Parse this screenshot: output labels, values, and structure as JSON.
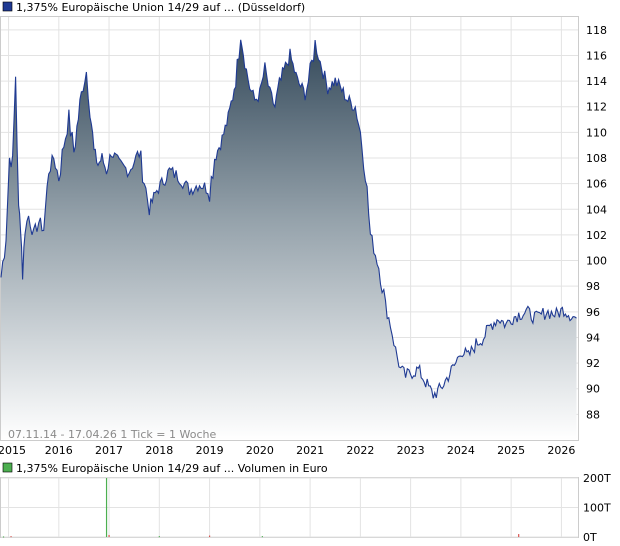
{
  "price_legend": {
    "label": "1,375% Europäische Union 14/29 auf ... (Düsseldorf)",
    "color": "#1f3a93"
  },
  "volume_legend": {
    "label": "1,375% Europäische Union 14/29 auf ... Volumen in Euro",
    "color": "#4caf50"
  },
  "range_note": "07.11.14 - 17.04.26   1 Tick = 1 Woche",
  "chart_data": [
    {
      "type": "area",
      "x_ticks": [
        "2015",
        "2016",
        "2017",
        "2018",
        "2019",
        "2020",
        "2021",
        "2022",
        "2023",
        "2024",
        "2025",
        "2026"
      ],
      "y_ticks": [
        "88",
        "90",
        "92",
        "94",
        "96",
        "98",
        "100",
        "102",
        "104",
        "106",
        "108",
        "110",
        "112",
        "114",
        "116",
        "118"
      ],
      "ylim": [
        86,
        119
      ],
      "xlim": [
        2014.85,
        2026.33
      ],
      "grid": true,
      "series": [
        {
          "name": "1,375% Europäische Union 14/29 auf ... (Düsseldorf)",
          "x": [
            2014.85,
            2014.95,
            2015.02,
            2015.08,
            2015.14,
            2015.2,
            2015.24,
            2015.28,
            2015.33,
            2015.4,
            2015.5,
            2015.6,
            2015.7,
            2015.8,
            2015.9,
            2016.0,
            2016.1,
            2016.2,
            2016.3,
            2016.45,
            2016.55,
            2016.62,
            2016.7,
            2016.78,
            2016.86,
            2016.95,
            2017.05,
            2017.2,
            2017.4,
            2017.6,
            2017.8,
            2017.95,
            2018.05,
            2018.2,
            2018.4,
            2018.6,
            2018.8,
            2019.0,
            2019.1,
            2019.25,
            2019.4,
            2019.55,
            2019.62,
            2019.7,
            2019.8,
            2019.9,
            2020.0,
            2020.1,
            2020.2,
            2020.3,
            2020.45,
            2020.6,
            2020.75,
            2020.9,
            2021.0,
            2021.1,
            2021.2,
            2021.35,
            2021.5,
            2021.6,
            2021.75,
            2021.9,
            2022.0,
            2022.1,
            2022.2,
            2022.3,
            2022.4,
            2022.5,
            2022.6,
            2022.7,
            2022.8,
            2022.9,
            2023.0,
            2023.15,
            2023.3,
            2023.45,
            2023.6,
            2023.75,
            2023.9,
            2024.0,
            2024.15,
            2024.3,
            2024.45,
            2024.6,
            2024.75,
            2024.9,
            2025.0,
            2025.15,
            2025.3,
            2025.5,
            2025.7,
            2025.9,
            2026.05,
            2026.2,
            2026.3
          ],
          "y": [
            98.7,
            102.0,
            108.0,
            107.5,
            114.5,
            104.0,
            103.0,
            99.0,
            102.5,
            103.5,
            102.0,
            103.0,
            102.5,
            107.0,
            108.0,
            106.5,
            109.0,
            111.0,
            108.5,
            113.0,
            114.8,
            112.0,
            108.5,
            107.5,
            108.0,
            107.0,
            108.5,
            107.5,
            107.0,
            108.5,
            104.0,
            105.5,
            106.0,
            107.0,
            106.5,
            105.5,
            106.0,
            105.5,
            108.0,
            109.5,
            111.5,
            115.0,
            118.0,
            115.5,
            113.5,
            112.5,
            113.0,
            115.0,
            113.0,
            112.0,
            114.5,
            116.0,
            114.0,
            113.0,
            114.5,
            117.0,
            115.5,
            113.5,
            114.0,
            113.5,
            112.5,
            112.0,
            110.0,
            107.0,
            102.0,
            100.5,
            99.0,
            96.5,
            95.0,
            93.0,
            91.5,
            91.0,
            91.2,
            91.5,
            90.5,
            89.5,
            90.0,
            91.0,
            92.0,
            93.0,
            92.5,
            93.5,
            94.0,
            95.0,
            95.5,
            95.0,
            95.5,
            95.8,
            96.0,
            95.5,
            96.0,
            95.8,
            96.2,
            95.7,
            95.5
          ]
        }
      ]
    },
    {
      "type": "bar",
      "y_ticks": [
        "0T",
        "100T",
        "200T"
      ],
      "ylim": [
        0,
        200
      ],
      "grid": true,
      "series": [
        {
          "name": "Volumen in Euro",
          "x": [
            2014.9,
            2015.05,
            2016.95,
            2017.0,
            2018.0,
            2019.0,
            2020.05,
            2025.15
          ],
          "values": [
            2,
            3,
            200,
            7,
            3,
            5,
            3,
            10
          ]
        }
      ]
    }
  ]
}
